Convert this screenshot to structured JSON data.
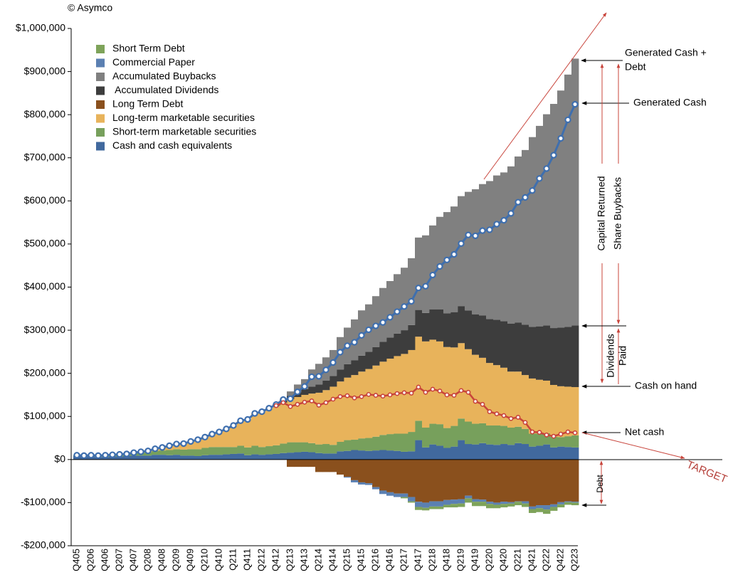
{
  "chart_data": {
    "type": "stacked_area_steps",
    "categories": [
      "Q405",
      null,
      "Q206",
      null,
      "Q406",
      null,
      "Q207",
      null,
      "Q407",
      null,
      "Q208",
      null,
      "Q408",
      null,
      "Q209",
      null,
      "Q409",
      null,
      "Q210",
      null,
      "Q410",
      null,
      "Q211",
      null,
      "Q411",
      null,
      "Q212",
      null,
      "Q412",
      null,
      "Q213",
      null,
      "Q413",
      null,
      "Q214",
      null,
      "Q414",
      null,
      "Q215",
      null,
      "Q415",
      null,
      "Q216",
      null,
      "Q416",
      null,
      "Q217",
      null,
      "Q417",
      null,
      "Q218",
      null,
      "Q418",
      null,
      "Q219",
      null,
      "Q419",
      null,
      "Q220",
      null,
      "Q420",
      null,
      "Q221",
      null,
      "Q421",
      null,
      "Q222",
      null,
      "Q422",
      null,
      "Q223"
    ],
    "series": [
      {
        "name": "Short Term Debt",
        "color": "#7ea35a",
        "values": [
          0,
          0,
          0,
          0,
          0,
          0,
          0,
          0,
          0,
          0,
          0,
          0,
          0,
          0,
          0,
          0,
          0,
          0,
          0,
          0,
          0,
          0,
          0,
          0,
          0,
          0,
          0,
          0,
          0,
          0,
          0,
          0,
          0,
          0,
          0,
          0,
          0,
          0,
          0,
          0,
          0,
          0,
          0,
          0,
          0,
          0,
          -3000,
          -3000,
          -7000,
          -6000,
          -6000,
          -6000,
          -6000,
          -8000,
          -8000,
          -10000,
          -10000,
          -10000,
          -10000,
          -8000,
          -8000,
          -7000,
          -8000,
          -8000,
          -9000,
          -9000,
          -10000,
          -9000,
          -7000,
          -6000,
          -6000
        ]
      },
      {
        "name": "Commercial Paper",
        "color": "#5b80b2",
        "values": [
          0,
          0,
          0,
          0,
          0,
          0,
          0,
          0,
          0,
          0,
          0,
          0,
          0,
          0,
          0,
          0,
          0,
          0,
          0,
          0,
          0,
          0,
          0,
          0,
          0,
          0,
          0,
          0,
          0,
          0,
          0,
          0,
          0,
          0,
          0,
          0,
          0,
          0,
          -2000,
          -5000,
          -5000,
          -4000,
          -5000,
          -8000,
          -8000,
          -8000,
          -8000,
          -10000,
          -12000,
          -12000,
          -12000,
          -12000,
          -11000,
          -10000,
          -10000,
          -6000,
          -6000,
          -5000,
          -5000,
          -5000,
          -5000,
          -3000,
          -1000,
          -5000,
          -6000,
          -7000,
          -10000,
          -6000,
          -5000,
          -2000,
          -2000
        ]
      },
      {
        "name": "Accumulated Buybacks",
        "color": "#808080",
        "values": [
          0,
          0,
          0,
          0,
          0,
          0,
          0,
          0,
          0,
          0,
          0,
          0,
          0,
          0,
          0,
          0,
          0,
          0,
          0,
          0,
          0,
          0,
          0,
          0,
          0,
          0,
          0,
          0,
          0,
          2000,
          10000,
          18000,
          23000,
          40000,
          48000,
          54000,
          60000,
          75000,
          85000,
          95000,
          105000,
          110000,
          118000,
          125000,
          131000,
          138000,
          145000,
          155000,
          168000,
          180000,
          195000,
          215000,
          235000,
          245000,
          255000,
          275000,
          290000,
          305000,
          320000,
          335000,
          345000,
          365000,
          385000,
          405000,
          440000,
          465000,
          490000,
          520000,
          550000,
          585000,
          619000
        ]
      },
      {
        "name": " Accumulated Dividends",
        "color": "#3d3d3d",
        "values": [
          0,
          0,
          0,
          0,
          0,
          0,
          0,
          0,
          0,
          0,
          0,
          0,
          0,
          0,
          0,
          0,
          0,
          0,
          0,
          0,
          0,
          0,
          0,
          0,
          0,
          0,
          0,
          0,
          2500,
          5000,
          8000,
          11000,
          13500,
          16000,
          19000,
          22000,
          25000,
          28000,
          31000,
          34000,
          37000,
          40000,
          43000,
          46000,
          49000,
          52000,
          55000,
          58000,
          62000,
          66000,
          70000,
          74000,
          78000,
          82000,
          86000,
          90000,
          94000,
          98000,
          102000,
          105000,
          108000,
          111000,
          114000,
          117000,
          120000,
          124000,
          128000,
          132000,
          136000,
          139000,
          143000
        ]
      },
      {
        "name": "Long Term Debt",
        "color": "#8a501d",
        "values": [
          0,
          0,
          0,
          0,
          0,
          0,
          0,
          0,
          0,
          0,
          0,
          0,
          0,
          0,
          0,
          0,
          0,
          0,
          0,
          0,
          0,
          0,
          0,
          0,
          0,
          0,
          0,
          0,
          0,
          0,
          -17000,
          -17000,
          -17000,
          -17000,
          -29000,
          -29000,
          -29000,
          -35000,
          -40000,
          -48000,
          -53000,
          -55000,
          -64000,
          -72000,
          -76000,
          -79000,
          -79000,
          -87000,
          -98000,
          -100000,
          -97000,
          -97000,
          -94000,
          -93000,
          -92000,
          -84000,
          -92000,
          -93000,
          -98000,
          -100000,
          -98000,
          -99000,
          -97000,
          -97000,
          -109000,
          -106000,
          -106000,
          -104000,
          -99000,
          -97000,
          -98000
        ]
      },
      {
        "name": "Long-term marketable securities",
        "color": "#e8b35b",
        "values": [
          0,
          0,
          0,
          0,
          0,
          0,
          0,
          0,
          1000,
          2000,
          3000,
          5000,
          7000,
          10000,
          12000,
          14000,
          18000,
          22000,
          25000,
          30000,
          35000,
          42000,
          50000,
          58000,
          65000,
          75000,
          82000,
          88000,
          92000,
          95000,
          100000,
          105000,
          110000,
          115000,
          120000,
          125000,
          135000,
          140000,
          145000,
          150000,
          155000,
          160000,
          165000,
          170000,
          175000,
          180000,
          185000,
          190000,
          195000,
          200000,
          195000,
          192000,
          188000,
          182000,
          175000,
          168000,
          160000,
          152000,
          145000,
          140000,
          135000,
          130000,
          128000,
          125000,
          128000,
          125000,
          122000,
          120000,
          118000,
          115000,
          112000
        ]
      },
      {
        "name": "Short-term marketable securities",
        "color": "#77a05c",
        "values": [
          2000,
          2000,
          3000,
          3000,
          4000,
          4000,
          5000,
          5000,
          6000,
          7000,
          8000,
          9000,
          10000,
          12000,
          13000,
          14000,
          15000,
          16000,
          17000,
          18000,
          18000,
          17000,
          16000,
          18000,
          18000,
          20000,
          18000,
          19000,
          20000,
          22000,
          24000,
          23000,
          22000,
          21000,
          20000,
          22000,
          20000,
          22000,
          25000,
          24000,
          28000,
          30000,
          32000,
          35000,
          38000,
          40000,
          42000,
          45000,
          45000,
          46000,
          48000,
          50000,
          46000,
          48000,
          50000,
          52000,
          48000,
          46000,
          44000,
          45000,
          42000,
          40000,
          38000,
          35000,
          30000,
          28000,
          26000,
          25000,
          22000,
          25000,
          28000
        ]
      },
      {
        "name": "Cash and cash equivalents",
        "color": "#41699e",
        "values": [
          8000,
          7000,
          7000,
          6000,
          6000,
          7000,
          7000,
          8000,
          9000,
          9000,
          9000,
          11000,
          11000,
          10000,
          11000,
          9000,
          9000,
          8000,
          10000,
          11000,
          11000,
          12000,
          13000,
          14000,
          10000,
          12000,
          11000,
          12000,
          13000,
          15000,
          16000,
          17000,
          18000,
          17000,
          15000,
          14000,
          14000,
          19000,
          20000,
          22000,
          21000,
          20000,
          21000,
          22000,
          21000,
          20000,
          18000,
          19000,
          45000,
          28000,
          35000,
          32000,
          27000,
          30000,
          45000,
          36000,
          35000,
          38000,
          35000,
          34000,
          36000,
          34000,
          38000,
          36000,
          30000,
          32000,
          35000,
          28000,
          30000,
          29000,
          28000
        ]
      }
    ],
    "lines": [
      {
        "name": "Generated Cash",
        "color": "#3f6fae",
        "values": [
          10000,
          9000,
          10000,
          9000,
          10000,
          11000,
          12000,
          13000,
          16000,
          18000,
          20000,
          25000,
          28000,
          32000,
          36000,
          37000,
          42000,
          46000,
          52000,
          59000,
          64000,
          71000,
          79000,
          90000,
          93000,
          107000,
          111000,
          119000,
          127500,
          139000,
          141000,
          157000,
          169500,
          192000,
          193000,
          208000,
          225000,
          249000,
          264000,
          272000,
          288000,
          301000,
          310000,
          318000,
          330000,
          343000,
          355000,
          367000,
          398000,
          402000,
          428000,
          448000,
          463000,
          476000,
          501000,
          521000,
          519000,
          531000,
          533000,
          546000,
          555000,
          571000,
          597000,
          608000,
          624000,
          652000,
          675000,
          706000,
          745000,
          788000,
          824000
        ]
      },
      {
        "name": "Net cash",
        "color": "#c8443b",
        "values": [
          null,
          null,
          null,
          null,
          null,
          null,
          null,
          null,
          null,
          null,
          null,
          null,
          null,
          null,
          null,
          null,
          null,
          null,
          null,
          null,
          null,
          null,
          null,
          null,
          null,
          null,
          null,
          null,
          125000,
          132000,
          123000,
          128000,
          133000,
          136000,
          126000,
          132000,
          140000,
          146000,
          148000,
          143000,
          146000,
          151000,
          149000,
          147000,
          150000,
          153000,
          155000,
          154000,
          168000,
          156000,
          163000,
          159000,
          150000,
          149000,
          160000,
          156000,
          135000,
          128000,
          111000,
          106000,
          102000,
          95000,
          98000,
          86000,
          64000,
          63000,
          57000,
          54000,
          59000,
          64000,
          62000
        ]
      }
    ],
    "annotations": [
      "© Asymco",
      "Generated Cash +",
      "Debt",
      "Capital Returned",
      "Share Buybacks",
      "Dividends",
      "Paid",
      "Cash on hand",
      "Debt",
      "TARGET"
    ],
    "ylim": [
      -200000,
      1000000
    ],
    "yticks": [
      {
        "value": -200000,
        "label": "-$200,000"
      },
      {
        "value": -100000,
        "label": "-$100,000"
      },
      {
        "value": 0,
        "label": "$0"
      },
      {
        "value": 100000,
        "label": "$100,000"
      },
      {
        "value": 200000,
        "label": "$200,000"
      },
      {
        "value": 300000,
        "label": "$300,000"
      },
      {
        "value": 400000,
        "label": "$400,000"
      },
      {
        "value": 500000,
        "label": "$500,000"
      },
      {
        "value": 600000,
        "label": "$600,000"
      },
      {
        "value": 700000,
        "label": "$700,000"
      },
      {
        "value": 800000,
        "label": "$800,000"
      },
      {
        "value": 900000,
        "label": "$900,000"
      },
      {
        "value": 1000000,
        "label": "$1,000,000"
      }
    ],
    "legend": "upper left"
  }
}
